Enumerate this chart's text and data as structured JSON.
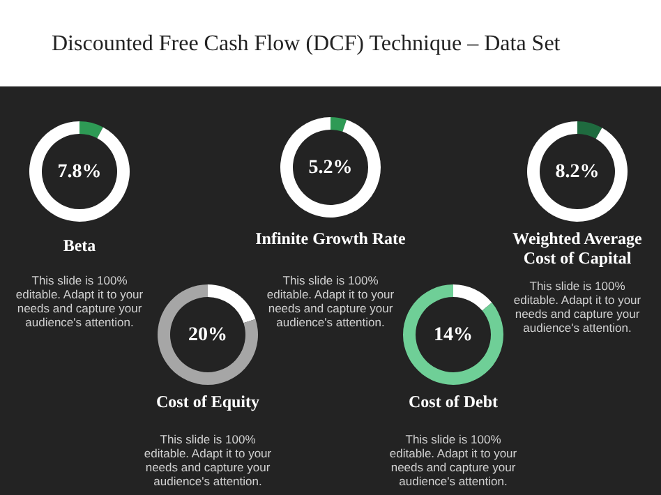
{
  "chart_data": [
    {
      "type": "donut",
      "title": "Beta",
      "categories": [
        null,
        null
      ],
      "values": [
        7.8,
        92.2
      ],
      "colors": [
        "#2e9a55",
        "#ffffff"
      ],
      "annotations": [
        "Discounted Free Cash Flow (DCF) Technique – Data Set",
        "7.8%",
        "This slide is 100% editable. Adapt it to your needs and capture your audience's attention."
      ]
    },
    {
      "type": "donut",
      "title": "Infinite Growth Rate",
      "categories": [
        null,
        null
      ],
      "values": [
        5.2,
        94.8
      ],
      "colors": [
        "#2e9a55",
        "#ffffff"
      ],
      "annotations": [
        "5.2%",
        "This slide is 100% editable. Adapt it to your needs and capture your audience's attention."
      ]
    },
    {
      "type": "donut",
      "title": "Weighted Average Cost of Capital",
      "categories": [
        null,
        null
      ],
      "values": [
        8.2,
        91.8
      ],
      "colors": [
        "#1f6b3f",
        "#ffffff"
      ],
      "annotations": [
        "8.2%",
        "This slide is 100% editable. Adapt it to your needs and capture your audience's attention."
      ]
    },
    {
      "type": "donut",
      "title": "Cost of Equity",
      "categories": [
        null,
        null
      ],
      "values": [
        20,
        80
      ],
      "colors": [
        "#ffffff",
        "#a6a6a6"
      ],
      "annotations": [
        "20%",
        "This slide is 100% editable. Adapt it to your needs and capture your audience's attention."
      ]
    },
    {
      "type": "donut",
      "title": "Cost of Debt",
      "categories": [
        null,
        null
      ],
      "values": [
        14,
        86
      ],
      "colors": [
        "#ffffff",
        "#6fcf97"
      ],
      "annotations": [
        "14%",
        "This slide is 100% editable. Adapt it to your needs and capture your audience's attention."
      ]
    }
  ]
}
